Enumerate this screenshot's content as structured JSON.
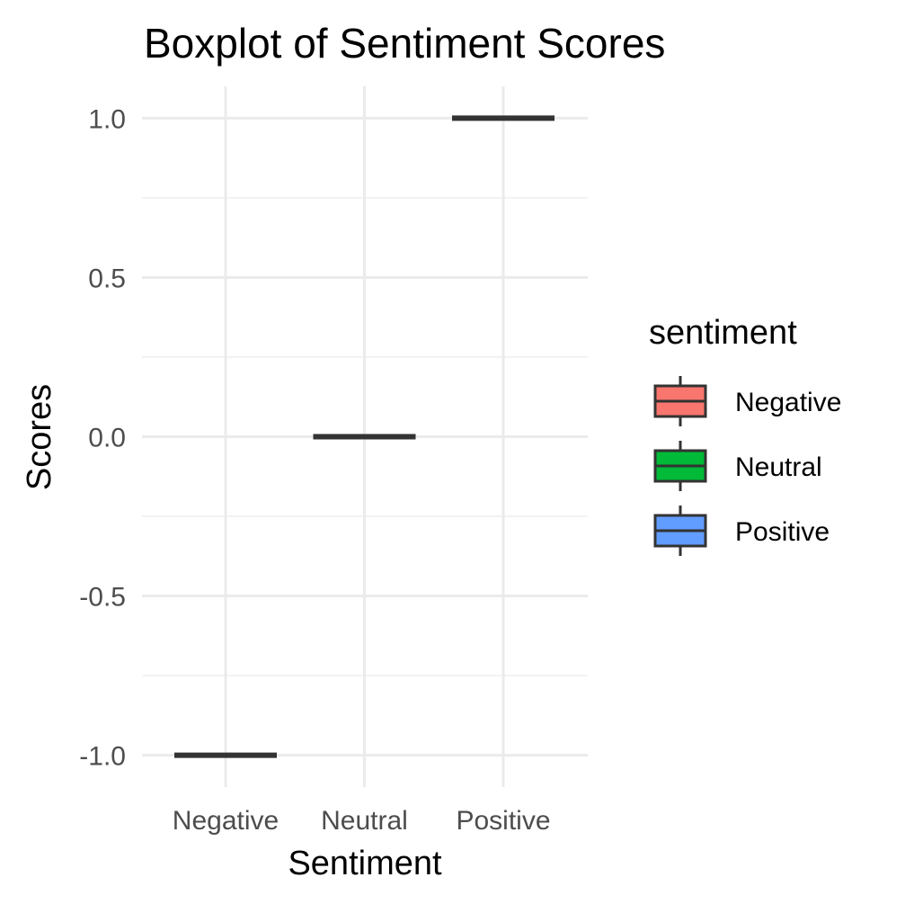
{
  "chart_data": {
    "type": "box",
    "title": "Boxplot of Sentiment Scores",
    "xlabel": "Sentiment",
    "ylabel": "Scores",
    "categories": [
      "Negative",
      "Neutral",
      "Positive"
    ],
    "ylim": [
      -1.1,
      1.1
    ],
    "yticks": [
      -1.0,
      -0.5,
      0.0,
      0.5,
      1.0
    ],
    "ytick_labels": [
      "-1.0",
      "-0.5",
      "0.0",
      "0.5",
      "1.0"
    ],
    "grid": true,
    "series": [
      {
        "name": "Negative",
        "color": "#F8766D",
        "min": -1,
        "q1": -1,
        "median": -1,
        "q3": -1,
        "max": -1
      },
      {
        "name": "Neutral",
        "color": "#00BA38",
        "min": 0,
        "q1": 0,
        "median": 0,
        "q3": 0,
        "max": 0
      },
      {
        "name": "Positive",
        "color": "#619CFF",
        "min": 1,
        "q1": 1,
        "median": 1,
        "q3": 1,
        "max": 1
      }
    ],
    "legend": {
      "title": "sentiment",
      "position": "right",
      "items": [
        "Negative",
        "Neutral",
        "Positive"
      ]
    },
    "box_stroke_color": "#333333"
  }
}
